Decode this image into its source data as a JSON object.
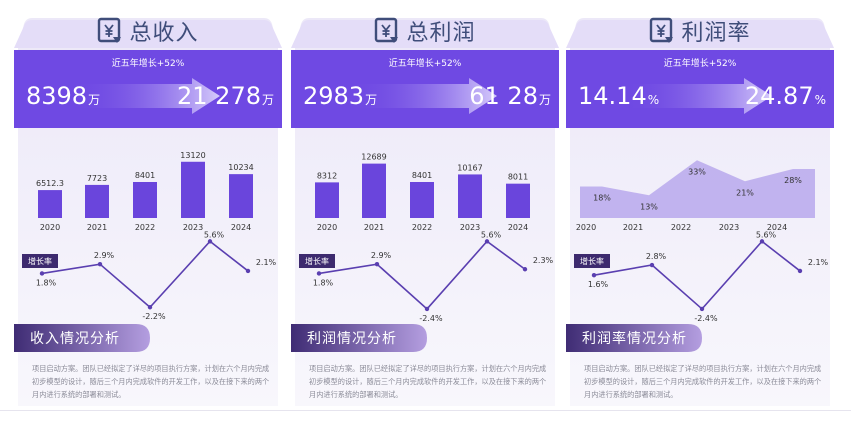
{
  "panels": [
    {
      "title": "总收入",
      "icon": "yen-document-icon",
      "growth_note": "近五年增长+52%",
      "from_value": "8398",
      "from_unit": "万",
      "to_value": "21278",
      "to_unit": "万",
      "to_value_display": "21 278",
      "section_title": "收入情况分析",
      "paragraph": "项目启动方案。团队已经拟定了详尽的项目执行方案，计划在六个月内完成初步模型的设计，随后三个月内完成软件的开发工作，以及在接下来的两个月内进行系统的部署和测试。"
    },
    {
      "title": "总利润",
      "icon": "yen-document-icon",
      "growth_note": "近五年增长+52%",
      "from_value": "2983",
      "from_unit": "万",
      "to_value": "6128",
      "to_unit": "万",
      "to_value_display": "61 28",
      "section_title": "利润情况分析",
      "paragraph": "项目启动方案。团队已经拟定了详尽的项目执行方案，计划在六个月内完成初步模型的设计，随后三个月内完成软件的开发工作，以及在接下来的两个月内进行系统的部署和测试。"
    },
    {
      "title": "利润率",
      "icon": "yen-document-icon",
      "growth_note": "近五年增长+52%",
      "from_value": "14.14",
      "from_unit": "%",
      "to_value": "24.87",
      "to_unit": "%",
      "to_value_display": "24.87",
      "section_title": "利润率情况分析",
      "paragraph": "项目启动方案。团队已经拟定了详尽的项目执行方案，计划在六个月内完成初步模型的设计，随后三个月内完成软件的开发工作，以及在接下来的两个月内进行系统的部署和测试。"
    }
  ],
  "colors": {
    "accent": "#6f49e3",
    "bar": "#6a45dc",
    "area": "#b8a8ec",
    "line": "#5a3fb0",
    "tag": "#3d2a6e",
    "section_tab_start": "#3f2c74",
    "section_tab_end": "#b49ee0",
    "panel_bg": "#f5f3fb",
    "title_text": "#3f4d7a"
  },
  "chart_data": [
    {
      "type": "bar",
      "categories": [
        "2020",
        "2021",
        "2022",
        "2023",
        "2024"
      ],
      "values": [
        6512.3,
        7723,
        8401,
        13120,
        10234
      ],
      "value_labels": [
        "6512.3",
        "7723",
        "8401",
        "13120",
        "10234"
      ],
      "ylim": [
        0,
        14000
      ]
    },
    {
      "type": "line",
      "tag": "增长率",
      "x": [
        "2020",
        "2021",
        "2022",
        "2023",
        "2024"
      ],
      "values": [
        1.8,
        2.9,
        -2.2,
        5.6,
        2.1
      ],
      "value_labels": [
        "1.8%",
        "2.9%",
        "-2.2%",
        "5.6%",
        "2.1%"
      ],
      "ylim": [
        -3,
        6
      ]
    },
    {
      "type": "bar",
      "categories": [
        "2020",
        "2021",
        "2022",
        "2023",
        "2024"
      ],
      "values": [
        8312,
        12689,
        8401,
        10167,
        8011
      ],
      "value_labels": [
        "8312",
        "12689",
        "8401",
        "10167",
        "8011"
      ],
      "ylim": [
        0,
        14000
      ]
    },
    {
      "type": "line",
      "tag": "增长率",
      "x": [
        "2020",
        "2021",
        "2022",
        "2023",
        "2024"
      ],
      "values": [
        1.8,
        2.9,
        -2.4,
        5.6,
        2.3
      ],
      "value_labels": [
        "1.8%",
        "2.9%",
        "-2.4%",
        "5.6%",
        "2.3%"
      ],
      "ylim": [
        -3,
        6
      ]
    },
    {
      "type": "area",
      "categories": [
        "2020",
        "2021",
        "2022",
        "2023",
        "2024"
      ],
      "values": [
        18,
        13,
        33,
        21,
        28
      ],
      "value_labels": [
        "18%",
        "13%",
        "33%",
        "21%",
        "28%"
      ],
      "ylim": [
        0,
        40
      ]
    },
    {
      "type": "line",
      "tag": "增长率",
      "x": [
        "2020",
        "2021",
        "2022",
        "2023",
        "2024"
      ],
      "values": [
        1.6,
        2.8,
        -2.4,
        5.6,
        2.1
      ],
      "value_labels": [
        "1.6%",
        "2.8%",
        "-2.4%",
        "5.6%",
        "2.1%"
      ],
      "ylim": [
        -3,
        6
      ]
    }
  ]
}
